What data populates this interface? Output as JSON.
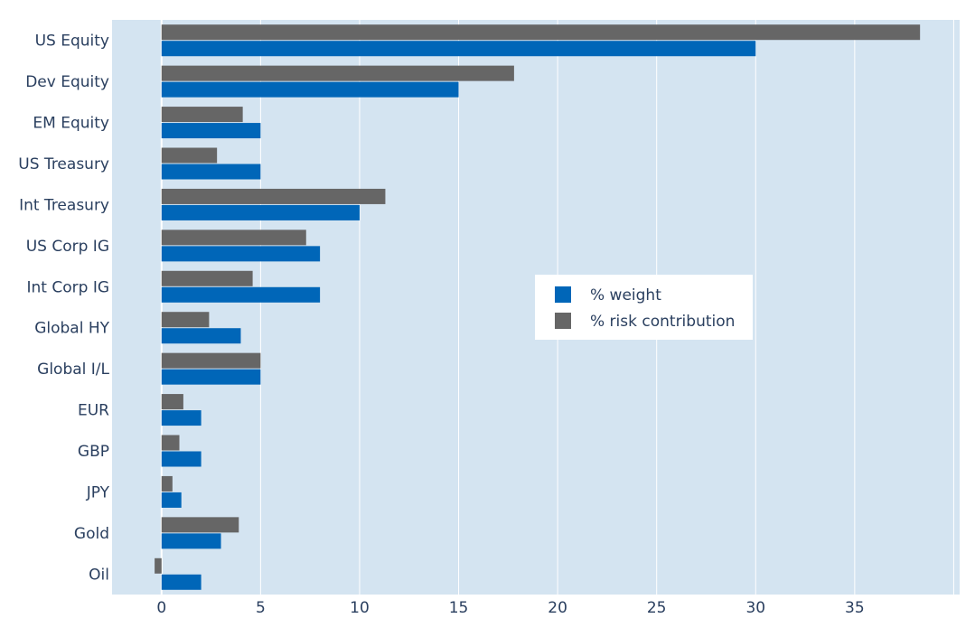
{
  "chart_data": {
    "type": "bar",
    "orientation": "horizontal",
    "categories": [
      "US Equity",
      "Dev Equity",
      "EM Equity",
      "US Treasury",
      "Int Treasury",
      "US Corp IG",
      "Int Corp IG",
      "Global HY",
      "Global I/L",
      "EUR",
      "GBP",
      "JPY",
      "Gold",
      "Oil"
    ],
    "series": [
      {
        "name": "% weight",
        "color": "#0066b8",
        "values": [
          30,
          15,
          5,
          5,
          10,
          8,
          8,
          4,
          5,
          2,
          2,
          1,
          3,
          2
        ]
      },
      {
        "name": "% risk contribution",
        "color": "#666666",
        "values": [
          38.3,
          17.8,
          4.1,
          2.8,
          11.3,
          7.3,
          4.6,
          2.4,
          5.0,
          1.1,
          0.9,
          0.55,
          3.9,
          -0.35
        ]
      }
    ],
    "xticks": [
      0,
      5,
      10,
      15,
      20,
      25,
      30,
      35
    ],
    "xlim": [
      -2.5,
      40.3
    ],
    "grid": true,
    "legend_position": "center-right",
    "plot_background": "#d4e4f1",
    "title": "",
    "xlabel": "",
    "ylabel": ""
  }
}
